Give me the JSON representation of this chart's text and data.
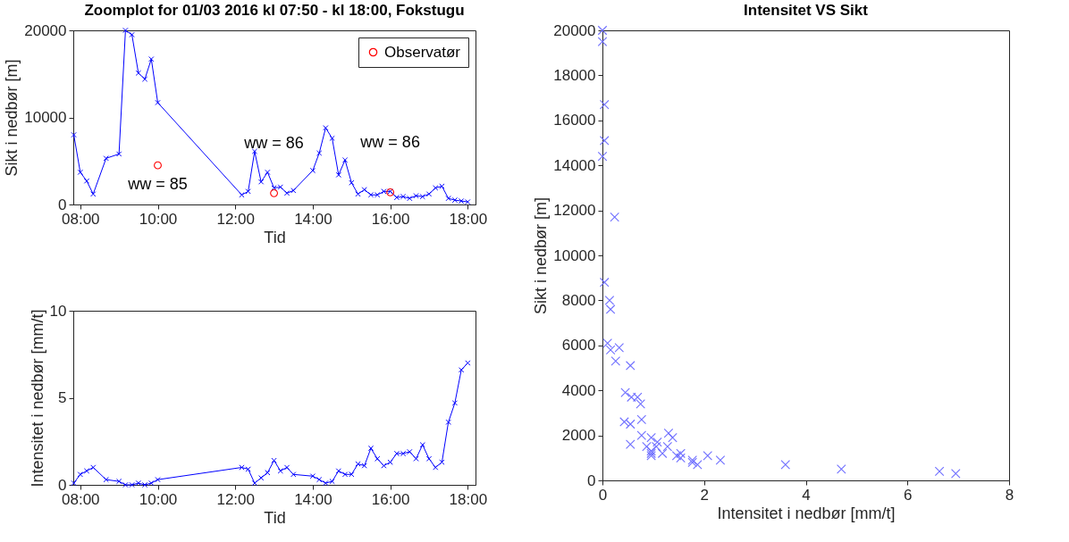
{
  "chart_data": [
    {
      "type": "line",
      "title": "Zoomplot for 01/03 2016 kl 07:50 - kl 18:00, Fokstugu",
      "xlabel": "Tid",
      "ylabel": "Sikt i nedbør [m]",
      "x": [
        7.8333,
        8.0,
        8.1667,
        8.3333,
        8.6667,
        9.0,
        9.1667,
        9.3333,
        9.5,
        9.6667,
        9.8333,
        10.0,
        12.1667,
        12.3333,
        12.5,
        12.6667,
        12.8333,
        13.0,
        13.1667,
        13.3333,
        13.5,
        14.0,
        14.1667,
        14.3333,
        14.5,
        14.6667,
        14.8333,
        15.0,
        15.1667,
        15.3333,
        15.5,
        15.6667,
        15.8333,
        16.0,
        16.1667,
        16.3333,
        16.5,
        16.6667,
        16.8333,
        17.0,
        17.1667,
        17.3333,
        17.5,
        17.6667,
        17.8333,
        18.0
      ],
      "xlim": [
        7.82,
        18.2
      ],
      "xticks": [
        {
          "value": 8,
          "label": "08:00"
        },
        {
          "value": 10,
          "label": "10:00"
        },
        {
          "value": 12,
          "label": "12:00"
        },
        {
          "value": 14,
          "label": "14:00"
        },
        {
          "value": 16,
          "label": "16:00"
        },
        {
          "value": 18,
          "label": "18:00"
        }
      ],
      "ylim": [
        0,
        20000
      ],
      "yticks": [
        0,
        10000,
        20000
      ],
      "legend": "top right",
      "series": [
        {
          "color": "#0000ff",
          "marker": "cross",
          "values": [
            8000,
            3700,
            2700,
            1200,
            5300,
            5800,
            20000,
            19500,
            15100,
            14400,
            16700,
            11700,
            1100,
            1500,
            6100,
            2600,
            3700,
            1900,
            2000,
            1300,
            1600,
            3900,
            5900,
            8800,
            7600,
            3400,
            5100,
            2500,
            1200,
            1700,
            1100,
            1100,
            1500,
            1500,
            800,
            900,
            700,
            1000,
            900,
            1200,
            1900,
            2100,
            700,
            500,
            400,
            300
          ]
        },
        {
          "type": "scatter",
          "name": "Observatør",
          "color": "#ff0000",
          "marker": "circle",
          "x": [
            10,
            13,
            16
          ],
          "values": [
            4500,
            1300,
            1400
          ]
        }
      ],
      "annotations": [
        {
          "text": "ww = 85",
          "x": 10,
          "y": 4500
        },
        {
          "text": "ww = 86",
          "x": 13,
          "y": 1300
        },
        {
          "text": "ww = 86",
          "x": 16,
          "y": 1400
        }
      ]
    },
    {
      "type": "line",
      "xlabel": "Tid",
      "ylabel": "Intensitet i nedbør [mm/t]",
      "x": [
        7.8333,
        8.0,
        8.1667,
        8.3333,
        8.6667,
        9.0,
        9.1667,
        9.3333,
        9.5,
        9.6667,
        9.8333,
        10.0,
        12.1667,
        12.3333,
        12.5,
        12.6667,
        12.8333,
        13.0,
        13.1667,
        13.3333,
        13.5,
        14.0,
        14.1667,
        14.3333,
        14.5,
        14.6667,
        14.8333,
        15.0,
        15.1667,
        15.3333,
        15.5,
        15.6667,
        15.8333,
        16.0,
        16.1667,
        16.3333,
        16.5,
        16.6667,
        16.8333,
        17.0,
        17.1667,
        17.3333,
        17.5,
        17.6667,
        17.8333,
        18.0
      ],
      "xlim": [
        7.82,
        18.2
      ],
      "xticks": [
        {
          "value": 8,
          "label": "08:00"
        },
        {
          "value": 10,
          "label": "10:00"
        },
        {
          "value": 12,
          "label": "12:00"
        },
        {
          "value": 14,
          "label": "14:00"
        },
        {
          "value": 16,
          "label": "16:00"
        },
        {
          "value": 18,
          "label": "18:00"
        }
      ],
      "ylim": [
        0,
        10
      ],
      "yticks": [
        0,
        5,
        10
      ],
      "marker": "cross",
      "series": [
        {
          "color": "#0000ff",
          "values": [
            0.1,
            0.6,
            0.8,
            1.0,
            0.3,
            0.2,
            0,
            0,
            0.1,
            0,
            0.1,
            0.3,
            1.0,
            0.9,
            0.1,
            0.4,
            0.7,
            1.4,
            0.8,
            1.0,
            0.6,
            0.5,
            0.3,
            0.1,
            0.2,
            0.8,
            0.6,
            0.6,
            1.2,
            1.1,
            2.1,
            1.5,
            1.1,
            1.3,
            1.8,
            1.8,
            1.9,
            1.5,
            2.3,
            1.5,
            1.0,
            1.3,
            3.6,
            4.7,
            6.6,
            7.0
          ]
        }
      ]
    },
    {
      "type": "scatter",
      "title": "Intensitet VS Sikt",
      "xlabel": "Intensitet i nedbør [mm/t]",
      "ylabel": "Sikt i nedbør [m]",
      "xlim": [
        0,
        8
      ],
      "xticks": [
        0,
        2,
        4,
        6,
        8
      ],
      "ylim": [
        0,
        20000
      ],
      "yticks": [
        0,
        2000,
        4000,
        6000,
        8000,
        10000,
        12000,
        14000,
        16000,
        18000,
        20000
      ],
      "marker": "cross",
      "series": [
        {
          "color": "#6f6fff",
          "x": [
            0.14,
            0.57,
            0.77,
            0.96,
            0.26,
            0.16,
            0,
            0,
            0.04,
            0,
            0.04,
            0.24,
            0.96,
            0.87,
            0.1,
            0.43,
            0.69,
            1.38,
            0.77,
            0.96,
            0.55,
            0.45,
            0.33,
            0.04,
            0.16,
            0.75,
            0.55,
            0.55,
            1.18,
            1.08,
            2.07,
            1.46,
            1.06,
            1.28,
            1.77,
            1.77,
            1.87,
            1.54,
            2.32,
            1.54,
            0.96,
            1.3,
            3.6,
            4.7,
            6.63,
            6.95
          ],
          "values": [
            8000,
            3700,
            2700,
            1200,
            5300,
            5800,
            20000,
            19500,
            15100,
            14400,
            16700,
            11700,
            1100,
            1500,
            6100,
            2600,
            3700,
            1900,
            2000,
            1300,
            1600,
            3900,
            5900,
            8800,
            7600,
            3400,
            5100,
            2500,
            1200,
            1700,
            1100,
            1100,
            1500,
            1500,
            800,
            900,
            700,
            1000,
            900,
            1200,
            1900,
            2100,
            700,
            500,
            400,
            300
          ]
        }
      ]
    }
  ]
}
